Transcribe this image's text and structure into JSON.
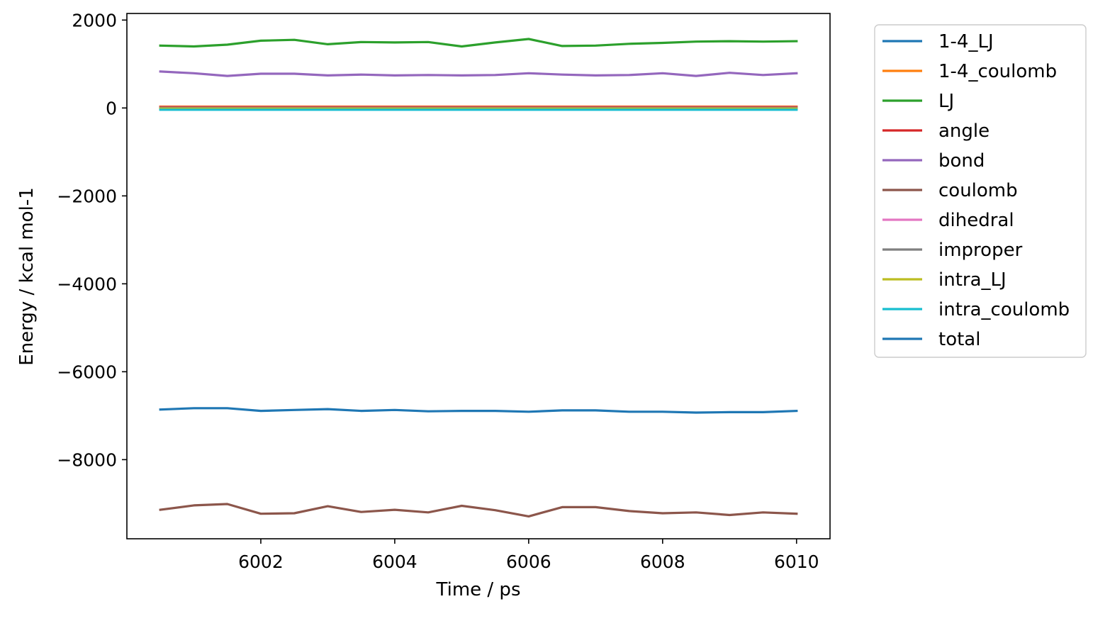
{
  "chart_data": {
    "type": "line",
    "title": "",
    "xlabel": "Time / ps",
    "ylabel": "Energy / kcal mol-1",
    "xlim": [
      6000,
      10.5
    ],
    "xticks": [
      6002,
      6004,
      6006,
      6008,
      6010
    ],
    "xtick_labels": [
      "6002",
      "6004",
      "6006",
      "6008",
      "6010"
    ],
    "ylim": [
      -9800,
      2150
    ],
    "yticks": [
      2000,
      0,
      -2000,
      -4000,
      -6000,
      -8000
    ],
    "ytick_labels": [
      "2000",
      "0",
      "−2000",
      "−4000",
      "−6000",
      "−8000"
    ],
    "grid": false,
    "legend_position": "outside-right",
    "x": [
      6000.5,
      6001.0,
      6001.5,
      6002.0,
      6002.5,
      6003.0,
      6003.5,
      6004.0,
      6004.5,
      6005.0,
      6005.5,
      6006.0,
      6006.5,
      6007.0,
      6007.5,
      6008.0,
      6008.5,
      6009.0,
      6009.5,
      6010.0
    ],
    "series": [
      {
        "name": "1-4_LJ",
        "color": "#1f77b4",
        "values": [
          10,
          10,
          10,
          10,
          10,
          10,
          10,
          10,
          10,
          10,
          10,
          10,
          10,
          10,
          10,
          10,
          10,
          10,
          10,
          10
        ]
      },
      {
        "name": "1-4_coulomb",
        "color": "#ff7f0e",
        "values": [
          30,
          30,
          30,
          30,
          30,
          30,
          30,
          30,
          30,
          30,
          30,
          30,
          30,
          30,
          30,
          30,
          30,
          30,
          30,
          30
        ]
      },
      {
        "name": "LJ",
        "color": "#2ca02c",
        "values": [
          1420,
          1400,
          1440,
          1530,
          1550,
          1450,
          1500,
          1490,
          1500,
          1400,
          1490,
          1570,
          1410,
          1420,
          1460,
          1480,
          1510,
          1520,
          1510,
          1520
        ]
      },
      {
        "name": "angle",
        "color": "#d62728",
        "values": [
          20,
          20,
          20,
          20,
          20,
          20,
          20,
          20,
          20,
          20,
          20,
          20,
          20,
          20,
          20,
          20,
          20,
          20,
          20,
          20
        ]
      },
      {
        "name": "bond",
        "color": "#9467bd",
        "values": [
          830,
          790,
          730,
          780,
          780,
          740,
          760,
          740,
          750,
          740,
          750,
          790,
          760,
          740,
          750,
          790,
          730,
          800,
          750,
          790
        ]
      },
      {
        "name": "coulomb",
        "color": "#8c564b",
        "values": [
          -9140,
          -9040,
          -9010,
          -9230,
          -9220,
          -9060,
          -9190,
          -9140,
          -9200,
          -9050,
          -9150,
          -9290,
          -9080,
          -9080,
          -9170,
          -9220,
          -9200,
          -9260,
          -9200,
          -9230
        ]
      },
      {
        "name": "dihedral",
        "color": "#e377c2",
        "values": [
          5,
          5,
          5,
          5,
          5,
          5,
          5,
          5,
          5,
          5,
          5,
          5,
          5,
          5,
          5,
          5,
          5,
          5,
          5,
          5
        ]
      },
      {
        "name": "improper",
        "color": "#7f7f7f",
        "values": [
          2,
          2,
          2,
          2,
          2,
          2,
          2,
          2,
          2,
          2,
          2,
          2,
          2,
          2,
          2,
          2,
          2,
          2,
          2,
          2
        ]
      },
      {
        "name": "intra_LJ",
        "color": "#bcbd22",
        "values": [
          -15,
          -15,
          -15,
          -15,
          -15,
          -15,
          -15,
          -15,
          -15,
          -15,
          -15,
          -15,
          -15,
          -15,
          -15,
          -15,
          -15,
          -15,
          -15,
          -15
        ]
      },
      {
        "name": "intra_coulomb",
        "color": "#17becf",
        "values": [
          -40,
          -40,
          -40,
          -40,
          -40,
          -40,
          -40,
          -40,
          -40,
          -40,
          -40,
          -40,
          -40,
          -40,
          -40,
          -40,
          -40,
          -40,
          -40,
          -40
        ]
      },
      {
        "name": "total",
        "color": "#1f77b4",
        "values": [
          -6860,
          -6830,
          -6830,
          -6890,
          -6870,
          -6850,
          -6890,
          -6870,
          -6900,
          -6890,
          -6890,
          -6910,
          -6880,
          -6880,
          -6910,
          -6910,
          -6930,
          -6920,
          -6920,
          -6890
        ]
      }
    ]
  }
}
